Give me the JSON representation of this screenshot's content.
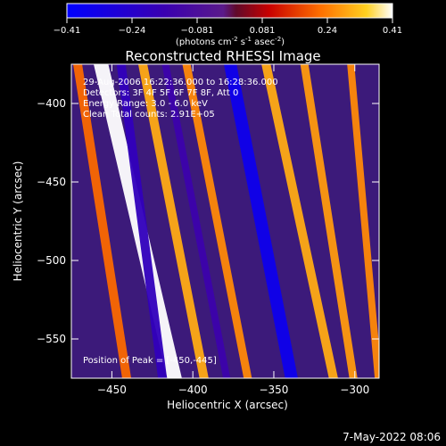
{
  "colorbar": {
    "tick_labels": [
      "-0.41",
      "-0.24",
      "-0.081",
      "0.081",
      "0.24",
      "0.41"
    ],
    "unit_main": "(photons cm",
    "unit_exp1": "-2",
    "unit_s": " s",
    "unit_exp2": "-1",
    "unit_asec": " asec",
    "unit_exp3": "-2",
    "unit_close": ")",
    "range": [
      -0.41,
      0.41
    ]
  },
  "chart_data": {
    "type": "heatmap",
    "title": "Reconstructed RHESSI Image",
    "xlabel": "Heliocentric X (arcsec)",
    "ylabel": "Heliocentric Y (arcsec)",
    "xlim": [
      -475,
      -285
    ],
    "ylim": [
      -575,
      -375
    ],
    "x_ticks": [
      -450,
      -400,
      -350,
      -300
    ],
    "y_ticks": [
      -400,
      -450,
      -500,
      -550
    ],
    "annotations": [
      "29-Aug-2006 16:22:36.000 to 16:28:36.000",
      "Detectors: 3F 4F 5F 6F 7F 8F, Att 0",
      "Energy Range: 3.0 - 6.0 keV",
      "Clean     Total counts: 2.91E+05"
    ],
    "peak_label": "Position of Peak = [-450,-445]",
    "peak": [
      -450,
      -445
    ],
    "bands": [
      {
        "x_at_top": -458,
        "x_at_bottom": -410,
        "value": 0.41,
        "width": 16
      },
      {
        "x_at_top": -472,
        "x_at_bottom": -440,
        "value": 0.22,
        "width": 10
      },
      {
        "x_at_top": -432,
        "x_at_bottom": -392,
        "value": 0.3,
        "width": 10
      },
      {
        "x_at_top": -405,
        "x_at_bottom": -365,
        "value": 0.26,
        "width": 9
      },
      {
        "x_at_top": -378,
        "x_at_bottom": -338,
        "value": -0.35,
        "width": 14
      },
      {
        "x_at_top": -356,
        "x_at_bottom": -312,
        "value": 0.3,
        "width": 10
      },
      {
        "x_at_top": -332,
        "x_at_bottom": -300,
        "value": 0.28,
        "width": 9
      },
      {
        "x_at_top": -303,
        "x_at_bottom": -285,
        "value": 0.26,
        "width": 8
      },
      {
        "x_at_top": -445,
        "x_at_bottom": -418,
        "value": -0.2,
        "width": 10
      },
      {
        "x_at_top": -418,
        "x_at_bottom": -378,
        "value": -0.15,
        "width": 8
      }
    ]
  },
  "footer": {
    "timestamp": "7-May-2022 08:06"
  }
}
